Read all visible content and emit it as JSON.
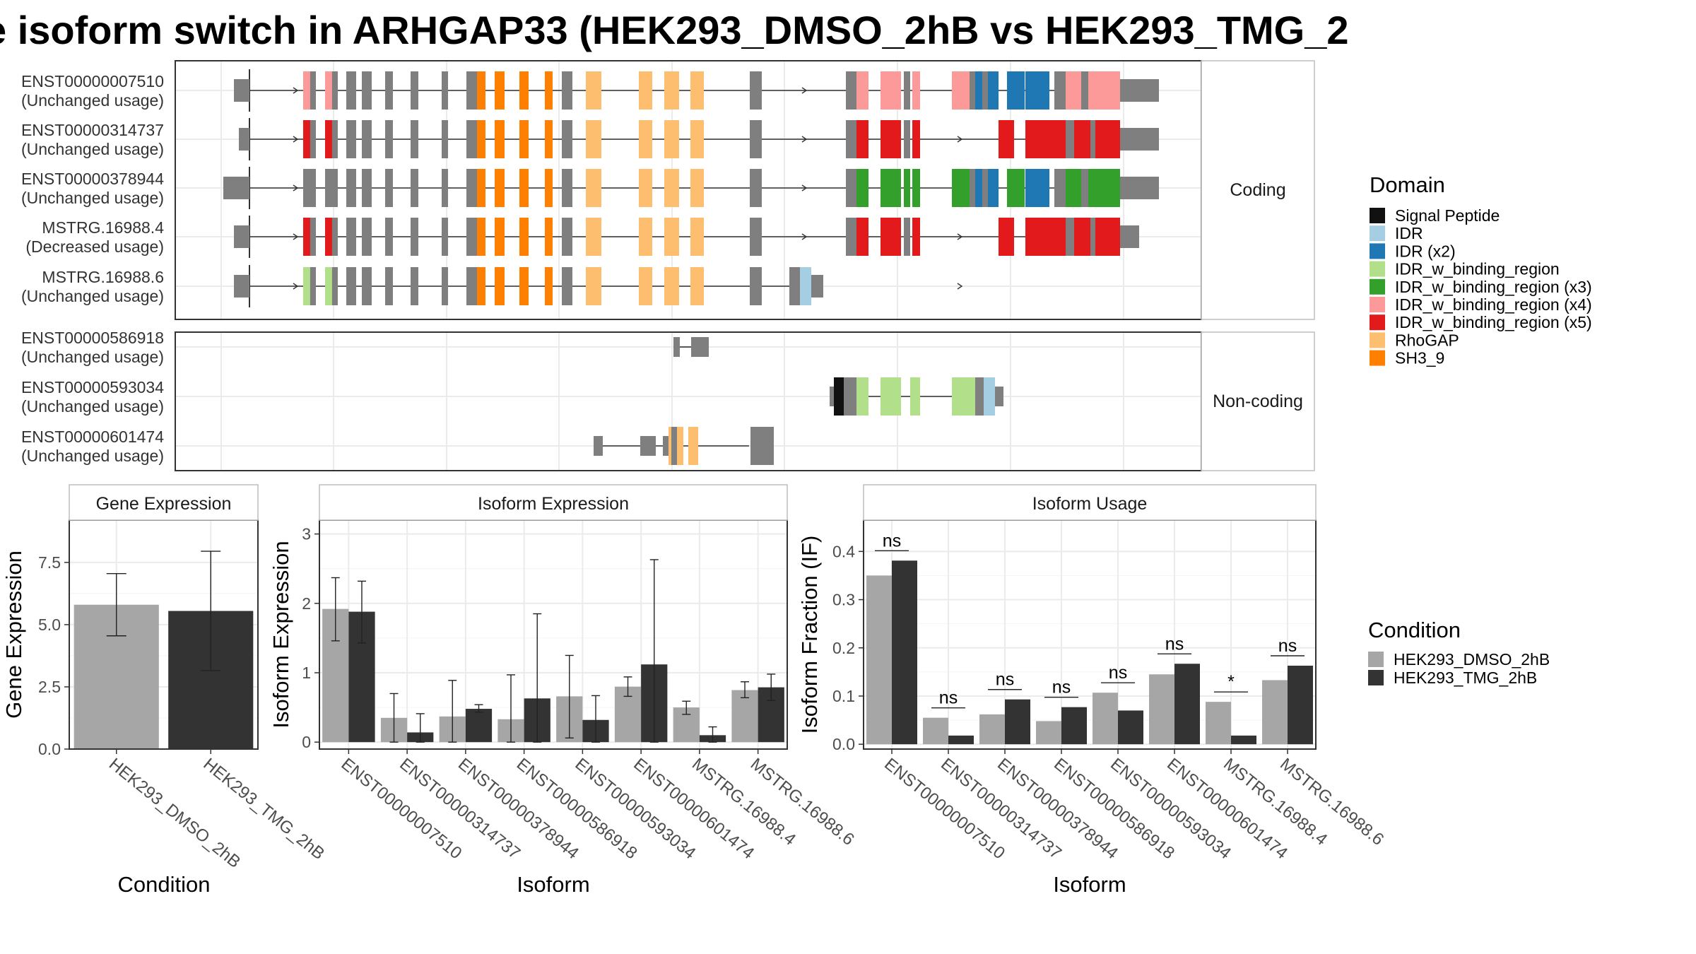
{
  "title": "e isoform switch in ARHGAP33 (HEK293_DMSO_2hB vs HEK293_TMG_2",
  "colors": {
    "Signal Peptide": "#111111",
    "IDR": "#a6cee3",
    "IDR (x2)": "#1f78b4",
    "IDR_w_binding_region": "#b2df8a",
    "IDR_w_binding_region (x3)": "#33a02c",
    "IDR_w_binding_region (x4)": "#fb9a99",
    "IDR_w_binding_region (x5)": "#e31a1c",
    "RhoGAP": "#fdbf6f",
    "SH3_9": "#ff7f00",
    "exon": "#7f7f7f",
    "HEK293_DMSO_2hB": "#a6a6a6",
    "HEK293_TMG_2hB": "#333333"
  },
  "structure": {
    "panels": [
      {
        "label": "Coding",
        "transcripts": [
          {
            "name": "ENST00000007510",
            "usage": "(Unchanged usage)",
            "domain_scheme": "x4"
          },
          {
            "name": "ENST00000314737",
            "usage": "(Unchanged usage)",
            "domain_scheme": "x5"
          },
          {
            "name": "ENST00000378944",
            "usage": "(Unchanged usage)",
            "domain_scheme": "x3"
          },
          {
            "name": "MSTRG.16988.4",
            "usage": "(Decreased usage)",
            "domain_scheme": "x5"
          },
          {
            "name": "MSTRG.16988.6",
            "usage": "(Unchanged usage)",
            "domain_scheme": "short"
          }
        ]
      },
      {
        "label": "Non-coding",
        "transcripts": [
          {
            "name": "ENST00000586918",
            "usage": "(Unchanged usage)"
          },
          {
            "name": "ENST00000593034",
            "usage": "(Unchanged usage)"
          },
          {
            "name": "ENST00000601474",
            "usage": "(Unchanged usage)"
          }
        ]
      }
    ]
  },
  "legend_domain": {
    "title": "Domain",
    "items": [
      "Signal Peptide",
      "IDR",
      "IDR (x2)",
      "IDR_w_binding_region",
      "IDR_w_binding_region (x3)",
      "IDR_w_binding_region (x4)",
      "IDR_w_binding_region (x5)",
      "RhoGAP",
      "SH3_9"
    ]
  },
  "legend_condition": {
    "title": "Condition",
    "items": [
      "HEK293_DMSO_2hB",
      "HEK293_TMG_2hB"
    ]
  },
  "chart_data": [
    {
      "type": "bar",
      "title": "Gene Expression",
      "xlabel": "Condition",
      "ylabel": "Gene Expression",
      "categories": [
        "HEK293_DMSO_2hB",
        "HEK293_TMG_2hB"
      ],
      "values": [
        5.8,
        5.55
      ],
      "error": [
        [
          4.55,
          7.05
        ],
        [
          3.15,
          7.95
        ]
      ],
      "ylim": [
        0,
        9.2
      ],
      "yticks": [
        "0.0",
        "2.5",
        "5.0",
        "7.5"
      ],
      "ytick_values": [
        0,
        2.5,
        5.0,
        7.5
      ]
    },
    {
      "type": "bar",
      "title": "Isoform Expression",
      "xlabel": "Isoform",
      "ylabel": "Isoform Expression",
      "categories": [
        "ENST00000007510",
        "ENST00000314737",
        "ENST00000378944",
        "ENST00000586918",
        "ENST00000593034",
        "ENST00000601474",
        "MSTRG.16988.4",
        "MSTRG.16988.6"
      ],
      "series": [
        {
          "name": "HEK293_DMSO_2hB",
          "values": [
            1.92,
            0.35,
            0.37,
            0.33,
            0.66,
            0.8,
            0.5,
            0.75
          ],
          "error": [
            [
              1.46,
              2.37
            ],
            [
              0,
              0.7
            ],
            [
              0,
              0.89
            ],
            [
              0,
              0.97
            ],
            [
              0.06,
              1.25
            ],
            [
              0.66,
              0.94
            ],
            [
              0.4,
              0.59
            ],
            [
              0.64,
              0.87
            ]
          ]
        },
        {
          "name": "HEK293_TMG_2hB",
          "values": [
            1.88,
            0.14,
            0.48,
            0.63,
            0.32,
            1.12,
            0.1,
            0.79
          ],
          "error": [
            [
              1.43,
              2.32
            ],
            [
              0,
              0.41
            ],
            [
              0.43,
              0.54
            ],
            [
              0,
              1.85
            ],
            [
              0,
              0.67
            ],
            [
              0,
              2.63
            ],
            [
              0,
              0.22
            ],
            [
              0.6,
              0.98
            ]
          ]
        }
      ],
      "ylim": [
        -0.1,
        3.2
      ],
      "yticks": [
        "0",
        "1",
        "2",
        "3"
      ],
      "ytick_values": [
        0,
        1,
        2,
        3
      ]
    },
    {
      "type": "bar",
      "title": "Isoform Usage",
      "xlabel": "Isoform",
      "ylabel": "Isoform Fraction (IF)",
      "categories": [
        "ENST00000007510",
        "ENST00000314737",
        "ENST00000378944",
        "ENST00000586918",
        "ENST00000593034",
        "ENST00000601474",
        "MSTRG.16988.4",
        "MSTRG.16988.6"
      ],
      "series": [
        {
          "name": "HEK293_DMSO_2hB",
          "values": [
            0.35,
            0.055,
            0.062,
            0.048,
            0.107,
            0.145,
            0.088,
            0.133
          ]
        },
        {
          "name": "HEK293_TMG_2hB",
          "values": [
            0.381,
            0.018,
            0.093,
            0.077,
            0.07,
            0.167,
            0.018,
            0.163
          ]
        }
      ],
      "significance": [
        "ns",
        "ns",
        "ns",
        "ns",
        "ns",
        "ns",
        "*",
        "ns"
      ],
      "ylim": [
        -0.01,
        0.465
      ],
      "yticks": [
        "0.0",
        "0.1",
        "0.2",
        "0.3",
        "0.4"
      ],
      "ytick_values": [
        0,
        0.1,
        0.2,
        0.3,
        0.4
      ]
    }
  ]
}
